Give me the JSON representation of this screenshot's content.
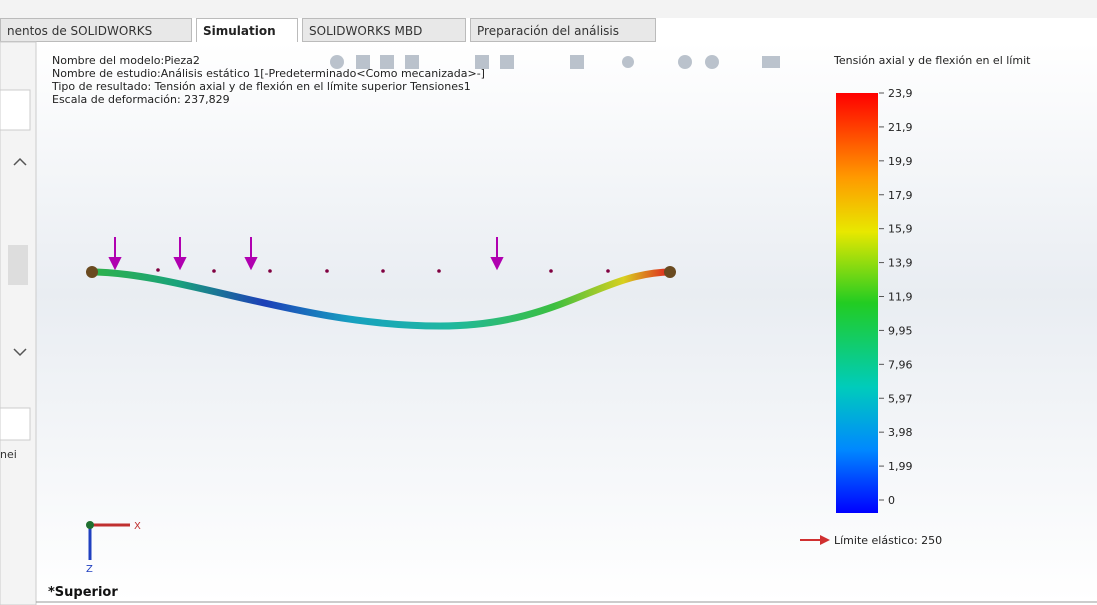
{
  "tabs": [
    "nentos de SOLIDWORKS",
    "Simulation",
    "SOLIDWORKS MBD",
    "Preparación del análisis"
  ],
  "info": {
    "model": "Nombre del modelo:Pieza2",
    "study": "Nombre de estudio:Análisis estático 1[-Predeterminado<Como mecanizada>-]",
    "result_type": "Tipo de resultado: Tensión axial y de flexión en el límite superior Tensiones1",
    "deformation_scale": "Escala de deformación: 237,829"
  },
  "legend": {
    "title": "Tensión axial y de flexión en el límit",
    "labels": [
      "23,9",
      "21,9",
      "19,9",
      "17,9",
      "15,9",
      "13,9",
      "11,9",
      "9,95",
      "7,96",
      "5,97",
      "3,98",
      "1,99",
      "0"
    ],
    "yield": "Límite elástico: 250"
  },
  "triad": {
    "x": "X",
    "z": "Z"
  },
  "view": "*Superior",
  "side_panel": {
    "fragment": "nei"
  }
}
